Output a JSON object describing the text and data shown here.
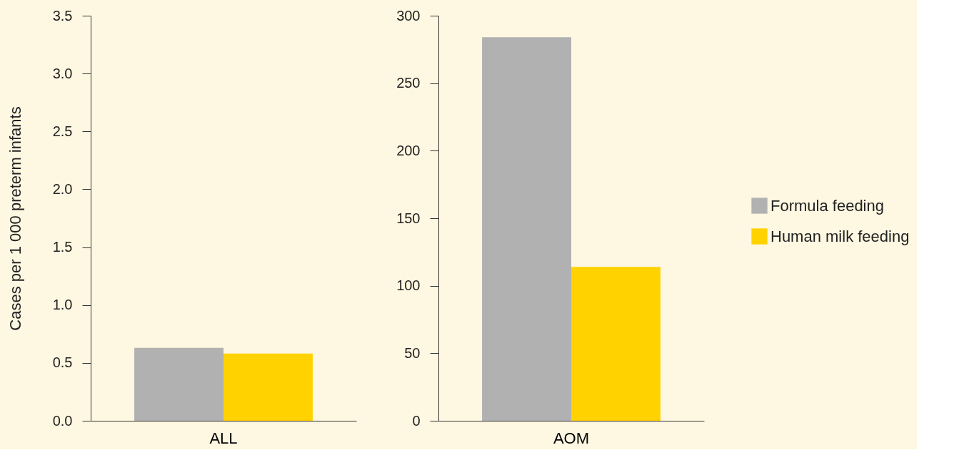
{
  "chart_data": [
    {
      "type": "bar",
      "categories": [
        "ALL"
      ],
      "ylabel": "Cases per 1 000 preterm infants",
      "ylim": [
        0,
        3.5
      ],
      "yticks": [
        {
          "value": 0,
          "label": "0.0"
        },
        0.5,
        {
          "value": 1,
          "label": "1.0"
        },
        1.5,
        {
          "value": 2,
          "label": "2.0"
        },
        2.5,
        {
          "value": 3,
          "label": "3.0"
        },
        3.5
      ],
      "grid": false,
      "legend": "right",
      "series": [
        {
          "name": "Formula feeding",
          "color": "#b1b1b1",
          "values": [
            0.63
          ]
        },
        {
          "name": "Human milk feeding",
          "color": "#ffd200",
          "values": [
            0.58
          ]
        }
      ]
    },
    {
      "type": "bar",
      "categories": [
        "AOM"
      ],
      "ylim": [
        0,
        300
      ],
      "yticks": [
        0,
        50,
        100,
        150,
        200,
        250,
        300
      ],
      "grid": false,
      "legend": "right",
      "series": [
        {
          "name": "Formula feeding",
          "color": "#b1b1b1",
          "values": [
            284
          ]
        },
        {
          "name": "Human milk feeding",
          "color": "#ffd200",
          "values": [
            114
          ]
        }
      ]
    }
  ]
}
